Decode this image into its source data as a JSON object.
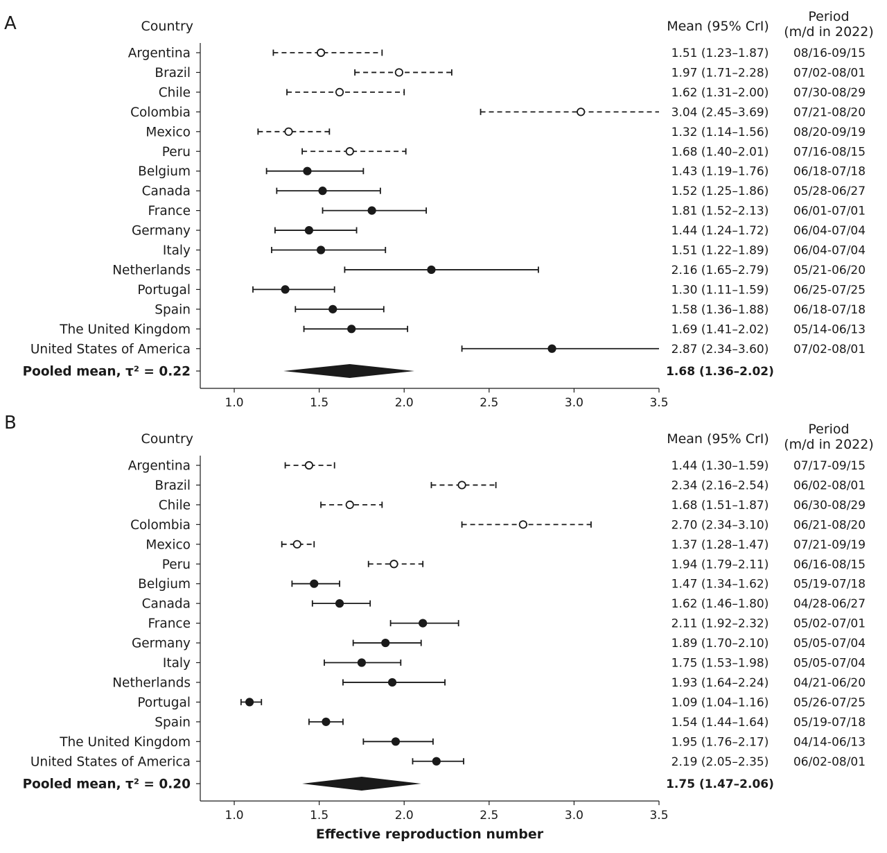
{
  "figure": {
    "xlabel": "Effective reproduction number",
    "xticks": [
      1.0,
      1.5,
      2.0,
      2.5,
      3.0,
      3.5
    ],
    "xtick_labels": [
      "1.0",
      "1.5",
      "2.0",
      "2.5",
      "3.0",
      "3.5"
    ],
    "xlim": [
      0.8,
      3.5
    ]
  },
  "chart_data": [
    {
      "type": "forest",
      "panel": "A",
      "header_country": "Country",
      "header_mean": "Mean (95% CrI)",
      "header_period_line1": "Period",
      "header_period_line2": "(m/d in 2022)",
      "rows": [
        {
          "country": "Argentina",
          "mean": 1.51,
          "lo": 1.23,
          "hi": 1.87,
          "label": "1.51 (1.23–1.87)",
          "period": "08/16-09/15",
          "style": "dashed"
        },
        {
          "country": "Brazil",
          "mean": 1.97,
          "lo": 1.71,
          "hi": 2.28,
          "label": "1.97 (1.71–2.28)",
          "period": "07/02-08/01",
          "style": "dashed"
        },
        {
          "country": "Chile",
          "mean": 1.62,
          "lo": 1.31,
          "hi": 2.0,
          "label": "1.62 (1.31–2.00)",
          "period": "07/30-08/29",
          "style": "dashed"
        },
        {
          "country": "Colombia",
          "mean": 3.04,
          "lo": 2.45,
          "hi": 3.69,
          "label": "3.04 (2.45–3.69)",
          "period": "07/21-08/20",
          "style": "dashed"
        },
        {
          "country": "Mexico",
          "mean": 1.32,
          "lo": 1.14,
          "hi": 1.56,
          "label": "1.32 (1.14–1.56)",
          "period": "08/20-09/19",
          "style": "dashed"
        },
        {
          "country": "Peru",
          "mean": 1.68,
          "lo": 1.4,
          "hi": 2.01,
          "label": "1.68 (1.40–2.01)",
          "period": "07/16-08/15",
          "style": "dashed"
        },
        {
          "country": "Belgium",
          "mean": 1.43,
          "lo": 1.19,
          "hi": 1.76,
          "label": "1.43 (1.19–1.76)",
          "period": "06/18-07/18",
          "style": "solid"
        },
        {
          "country": "Canada",
          "mean": 1.52,
          "lo": 1.25,
          "hi": 1.86,
          "label": "1.52 (1.25–1.86)",
          "period": "05/28-06/27",
          "style": "solid"
        },
        {
          "country": "France",
          "mean": 1.81,
          "lo": 1.52,
          "hi": 2.13,
          "label": "1.81 (1.52–2.13)",
          "period": "06/01-07/01",
          "style": "solid"
        },
        {
          "country": "Germany",
          "mean": 1.44,
          "lo": 1.24,
          "hi": 1.72,
          "label": "1.44 (1.24–1.72)",
          "period": "06/04-07/04",
          "style": "solid"
        },
        {
          "country": "Italy",
          "mean": 1.51,
          "lo": 1.22,
          "hi": 1.89,
          "label": "1.51 (1.22–1.89)",
          "period": "06/04-07/04",
          "style": "solid"
        },
        {
          "country": "Netherlands",
          "mean": 2.16,
          "lo": 1.65,
          "hi": 2.79,
          "label": "2.16 (1.65–2.79)",
          "period": "05/21-06/20",
          "style": "solid"
        },
        {
          "country": "Portugal",
          "mean": 1.3,
          "lo": 1.11,
          "hi": 1.59,
          "label": "1.30 (1.11–1.59)",
          "period": "06/25-07/25",
          "style": "solid"
        },
        {
          "country": "Spain",
          "mean": 1.58,
          "lo": 1.36,
          "hi": 1.88,
          "label": "1.58 (1.36–1.88)",
          "period": "06/18-07/18",
          "style": "solid"
        },
        {
          "country": "The United Kingdom",
          "mean": 1.69,
          "lo": 1.41,
          "hi": 2.02,
          "label": "1.69 (1.41–2.02)",
          "period": "05/14-06/13",
          "style": "solid"
        },
        {
          "country": "United States of America",
          "mean": 2.87,
          "lo": 2.34,
          "hi": 3.6,
          "label": "2.87 (2.34–3.60)",
          "period": "07/02-08/01",
          "style": "solid"
        }
      ],
      "pooled": {
        "label": "Pooled mean, τ² = 0.22",
        "mean": 1.68,
        "lo": 1.36,
        "hi": 2.02,
        "text": "1.68 (1.36–2.02)"
      }
    },
    {
      "type": "forest",
      "panel": "B",
      "header_country": "Country",
      "header_mean": "Mean (95% CrI)",
      "header_period_line1": "Period",
      "header_period_line2": "(m/d in 2022)",
      "rows": [
        {
          "country": "Argentina",
          "mean": 1.44,
          "lo": 1.3,
          "hi": 1.59,
          "label": "1.44 (1.30–1.59)",
          "period": "07/17-09/15",
          "style": "dashed"
        },
        {
          "country": "Brazil",
          "mean": 2.34,
          "lo": 2.16,
          "hi": 2.54,
          "label": "2.34 (2.16–2.54)",
          "period": "06/02-08/01",
          "style": "dashed"
        },
        {
          "country": "Chile",
          "mean": 1.68,
          "lo": 1.51,
          "hi": 1.87,
          "label": "1.68 (1.51–1.87)",
          "period": "06/30-08/29",
          "style": "dashed"
        },
        {
          "country": "Colombia",
          "mean": 2.7,
          "lo": 2.34,
          "hi": 3.1,
          "label": "2.70 (2.34–3.10)",
          "period": "06/21-08/20",
          "style": "dashed"
        },
        {
          "country": "Mexico",
          "mean": 1.37,
          "lo": 1.28,
          "hi": 1.47,
          "label": "1.37 (1.28–1.47)",
          "period": "07/21-09/19",
          "style": "dashed"
        },
        {
          "country": "Peru",
          "mean": 1.94,
          "lo": 1.79,
          "hi": 2.11,
          "label": "1.94 (1.79–2.11)",
          "period": "06/16-08/15",
          "style": "dashed"
        },
        {
          "country": "Belgium",
          "mean": 1.47,
          "lo": 1.34,
          "hi": 1.62,
          "label": "1.47 (1.34–1.62)",
          "period": "05/19-07/18",
          "style": "solid"
        },
        {
          "country": "Canada",
          "mean": 1.62,
          "lo": 1.46,
          "hi": 1.8,
          "label": "1.62 (1.46–1.80)",
          "period": "04/28-06/27",
          "style": "solid"
        },
        {
          "country": "France",
          "mean": 2.11,
          "lo": 1.92,
          "hi": 2.32,
          "label": "2.11 (1.92–2.32)",
          "period": "05/02-07/01",
          "style": "solid"
        },
        {
          "country": "Germany",
          "mean": 1.89,
          "lo": 1.7,
          "hi": 2.1,
          "label": "1.89 (1.70–2.10)",
          "period": "05/05-07/04",
          "style": "solid"
        },
        {
          "country": "Italy",
          "mean": 1.75,
          "lo": 1.53,
          "hi": 1.98,
          "label": "1.75 (1.53–1.98)",
          "period": "05/05-07/04",
          "style": "solid"
        },
        {
          "country": "Netherlands",
          "mean": 1.93,
          "lo": 1.64,
          "hi": 2.24,
          "label": "1.93 (1.64–2.24)",
          "period": "04/21-06/20",
          "style": "solid"
        },
        {
          "country": "Portugal",
          "mean": 1.09,
          "lo": 1.04,
          "hi": 1.16,
          "label": "1.09 (1.04–1.16)",
          "period": "05/26-07/25",
          "style": "solid"
        },
        {
          "country": "Spain",
          "mean": 1.54,
          "lo": 1.44,
          "hi": 1.64,
          "label": "1.54 (1.44–1.64)",
          "period": "05/19-07/18",
          "style": "solid"
        },
        {
          "country": "The United Kingdom",
          "mean": 1.95,
          "lo": 1.76,
          "hi": 2.17,
          "label": "1.95 (1.76–2.17)",
          "period": "04/14-06/13",
          "style": "solid"
        },
        {
          "country": "United States of America",
          "mean": 2.19,
          "lo": 2.05,
          "hi": 2.35,
          "label": "2.19 (2.05–2.35)",
          "period": "06/02-08/01",
          "style": "solid"
        }
      ],
      "pooled": {
        "label": "Pooled mean, τ² = 0.20",
        "mean": 1.75,
        "lo": 1.47,
        "hi": 2.06,
        "text": "1.75 (1.47–2.06)"
      }
    }
  ]
}
